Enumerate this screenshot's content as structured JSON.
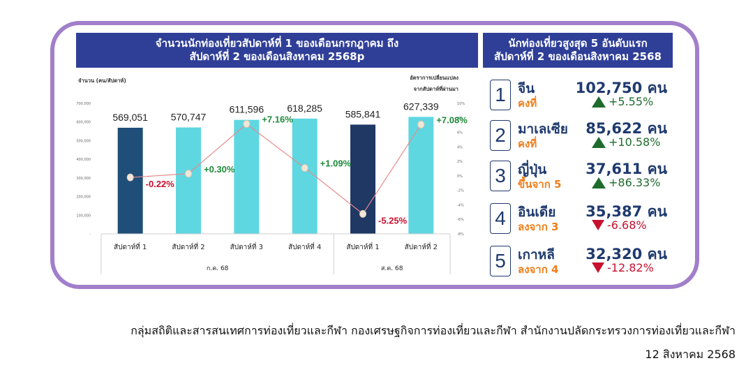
{
  "chart_title_line1": "จำนวนนักท่องเที่ยวสัปดาห์ที่ 1 ของเดือนกรกฎาคม ถึง",
  "chart_title_line2": "สัปดาห์ที่ 2 ของเดือนสิงหาคม 2568p",
  "y_left_label": "จำนวน (คน/สัปดาห์)",
  "y_right_label_line1": "อัตราการเปลี่ยนแปลง",
  "y_right_label_line2": "จากสัปดาห์ที่ผ่านมา",
  "chart_data": {
    "type": "bar",
    "categories": [
      "สัปดาห์ที่ 1",
      "สัปดาห์ที่ 2",
      "สัปดาห์ที่ 3",
      "สัปดาห์ที่ 4",
      "สัปดาห์ที่ 1",
      "สัปดาห์ที่ 2"
    ],
    "groups": [
      {
        "label": "ก.ค. 68",
        "count": 4
      },
      {
        "label": "ส.ค. 68",
        "count": 2
      }
    ],
    "values": [
      569051,
      570747,
      611596,
      618285,
      585841,
      627339
    ],
    "value_labels": [
      "569,051",
      "570,747",
      "611,596",
      "618,285",
      "585,841",
      "627,339"
    ],
    "bar_colors": [
      "#1f4e79",
      "#5fd7e1",
      "#5fd7e1",
      "#5fd7e1",
      "#1f3864",
      "#5fd7e1"
    ],
    "ylim": [
      0,
      700000
    ],
    "y_ticks": [
      0,
      100000,
      200000,
      300000,
      400000,
      500000,
      600000,
      700000
    ],
    "y_tick_labels": [
      "-",
      "100,000",
      "200,000",
      "300,000",
      "400,000",
      "500,000",
      "600,000",
      "700,000"
    ],
    "line_series": {
      "values": [
        -0.22,
        0.3,
        7.16,
        1.09,
        -5.25,
        7.08
      ],
      "labels": [
        "-0.22%",
        "+0.30%",
        "+7.16%",
        "+1.09%",
        "-5.25%",
        "+7.08%"
      ],
      "label_colors": [
        "#c8102e",
        "#1e8b3a",
        "#1e8b3a",
        "#1e8b3a",
        "#c8102e",
        "#1e8b3a"
      ],
      "ylim": [
        -8,
        10
      ],
      "y_ticks": [
        -8,
        -6,
        -4,
        -2,
        0,
        2,
        4,
        6,
        8,
        10
      ],
      "y_tick_labels": [
        "-8%",
        "-6%",
        "-4%",
        "-2%",
        "0%",
        "2%",
        "4%",
        "6%",
        "8%",
        "10%"
      ],
      "color": "#e88a8a"
    }
  },
  "ranking_title_line1": "นักท่องเที่ยวสูงสุด 5 อันดับแรก",
  "ranking_title_line2": "สัปดาห์ที่ 2 ของเดือนสิงหาคม 2568",
  "ranking": [
    {
      "rank": "1",
      "country": "จีน",
      "movement": "คงที่",
      "count": "102,750 คน",
      "change": "+5.55%",
      "direction": "up"
    },
    {
      "rank": "2",
      "country": "มาเลเซีย",
      "movement": "คงที่",
      "count": "85,622 คน",
      "change": "+10.58%",
      "direction": "up"
    },
    {
      "rank": "3",
      "country": "ญี่ปุ่น",
      "movement": "ขึ้นจาก 5",
      "count": "37,611 คน",
      "change": "+86.33%",
      "direction": "up"
    },
    {
      "rank": "4",
      "country": "อินเดีย",
      "movement": "ลงจาก 3",
      "count": "35,387 คน",
      "change": "-6.68%",
      "direction": "down"
    },
    {
      "rank": "5",
      "country": "เกาหลี",
      "movement": "ลงจาก 4",
      "count": "32,320 คน",
      "change": "-12.82%",
      "direction": "down"
    }
  ],
  "footer_line1": "กลุ่มสถิติและสารสนเทศการท่องเที่ยวและกีฬา กองเศรษฐกิจการท่องเที่ยวและกีฬา สำนักงานปลัดกระทรวงการท่องเที่ยวและกีฬา",
  "footer_line2": "12 สิงหาคม 2568"
}
